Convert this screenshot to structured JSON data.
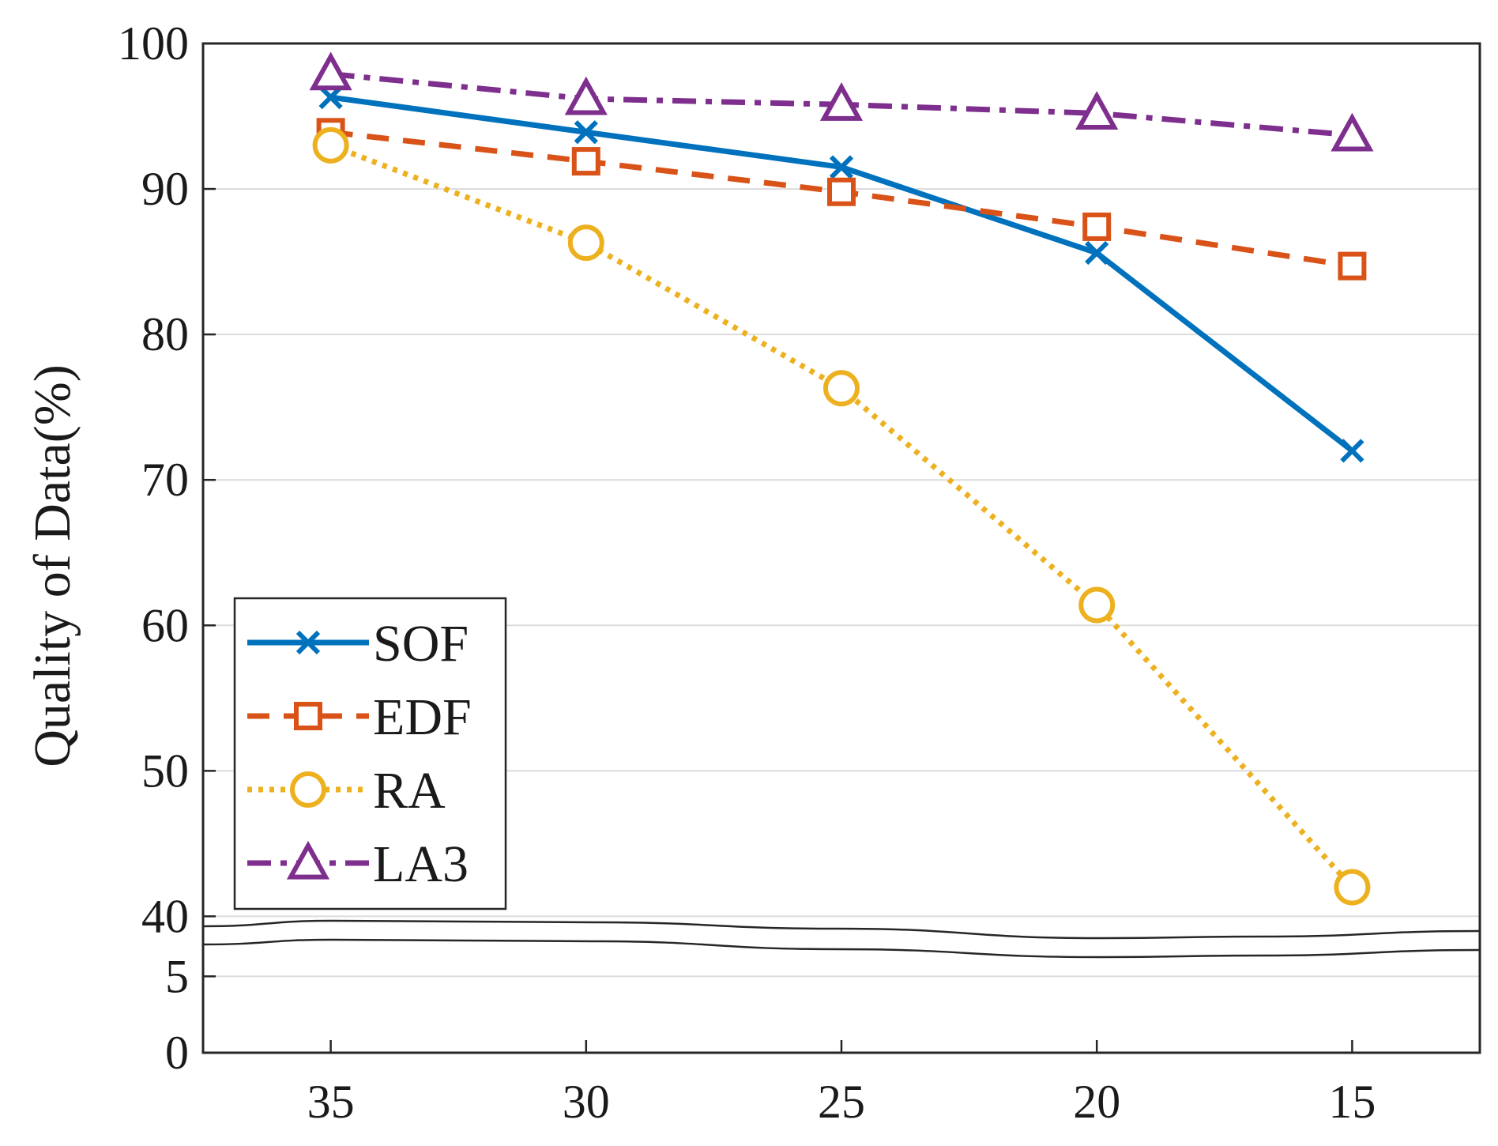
{
  "chart_data": {
    "type": "line",
    "title": "",
    "xlabel": "",
    "ylabel": "Quality of Data(%)",
    "categories": [
      "35",
      "30",
      "25",
      "20",
      "15"
    ],
    "x": [
      35,
      30,
      25,
      20,
      15
    ],
    "x_direction": "descending",
    "y_axis": {
      "broken": true,
      "lower_segment": {
        "range": [
          0,
          7.5
        ],
        "ticks": [
          0,
          5
        ]
      },
      "upper_segment": {
        "range": [
          38.5,
          100
        ],
        "ticks": [
          40,
          50,
          60,
          70,
          80,
          90,
          100
        ]
      }
    },
    "grid": true,
    "legend_position": "lower-left",
    "series": [
      {
        "name": "SOF",
        "values": [
          96.3,
          93.9,
          91.5,
          85.6,
          72.0
        ],
        "color": "#0072BD",
        "line_style": "solid",
        "marker": "x"
      },
      {
        "name": "EDF",
        "values": [
          93.9,
          91.9,
          89.8,
          87.4,
          84.7
        ],
        "color": "#D95319",
        "line_style": "dashed",
        "marker": "square"
      },
      {
        "name": "RA",
        "values": [
          93.0,
          86.3,
          76.3,
          61.4,
          42.0
        ],
        "color": "#EDB120",
        "line_style": "dotted",
        "marker": "circle"
      },
      {
        "name": "LA3",
        "values": [
          97.9,
          96.2,
          95.8,
          95.2,
          93.7
        ],
        "color": "#7E2F8E",
        "line_style": "dashdot",
        "marker": "triangle"
      }
    ]
  }
}
